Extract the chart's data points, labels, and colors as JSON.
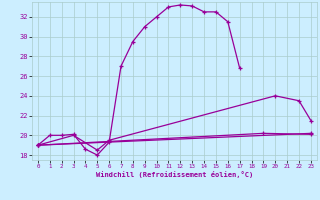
{
  "xlabel": "Windchill (Refroidissement éolien,°C)",
  "background_color": "#cceeff",
  "grid_color": "#aacccc",
  "line_color": "#990099",
  "xlim": [
    -0.5,
    23.5
  ],
  "ylim": [
    17.5,
    33.5
  ],
  "yticks": [
    18,
    20,
    22,
    24,
    26,
    28,
    30,
    32
  ],
  "xticks": [
    0,
    1,
    2,
    3,
    4,
    5,
    6,
    7,
    8,
    9,
    10,
    11,
    12,
    13,
    14,
    15,
    16,
    17,
    18,
    19,
    20,
    21,
    22,
    23
  ],
  "series_data": {
    "line1_x": [
      0,
      1,
      2,
      3,
      4,
      5,
      6,
      7,
      8,
      9,
      10,
      11,
      12,
      13,
      14,
      15,
      16,
      17
    ],
    "line1_y": [
      19.0,
      20.0,
      20.0,
      20.1,
      18.6,
      18.0,
      19.3,
      27.0,
      29.5,
      31.0,
      32.0,
      33.0,
      33.2,
      33.1,
      32.5,
      32.5,
      31.5,
      26.8
    ],
    "line2_x": [
      0,
      3,
      5,
      6,
      20,
      22,
      23
    ],
    "line2_y": [
      19.0,
      20.0,
      18.5,
      19.5,
      24.0,
      23.5,
      21.5
    ],
    "line3_x": [
      0,
      19,
      23
    ],
    "line3_y": [
      19.0,
      20.2,
      20.1
    ],
    "line4_x": [
      0,
      23
    ],
    "line4_y": [
      19.0,
      20.2
    ]
  }
}
